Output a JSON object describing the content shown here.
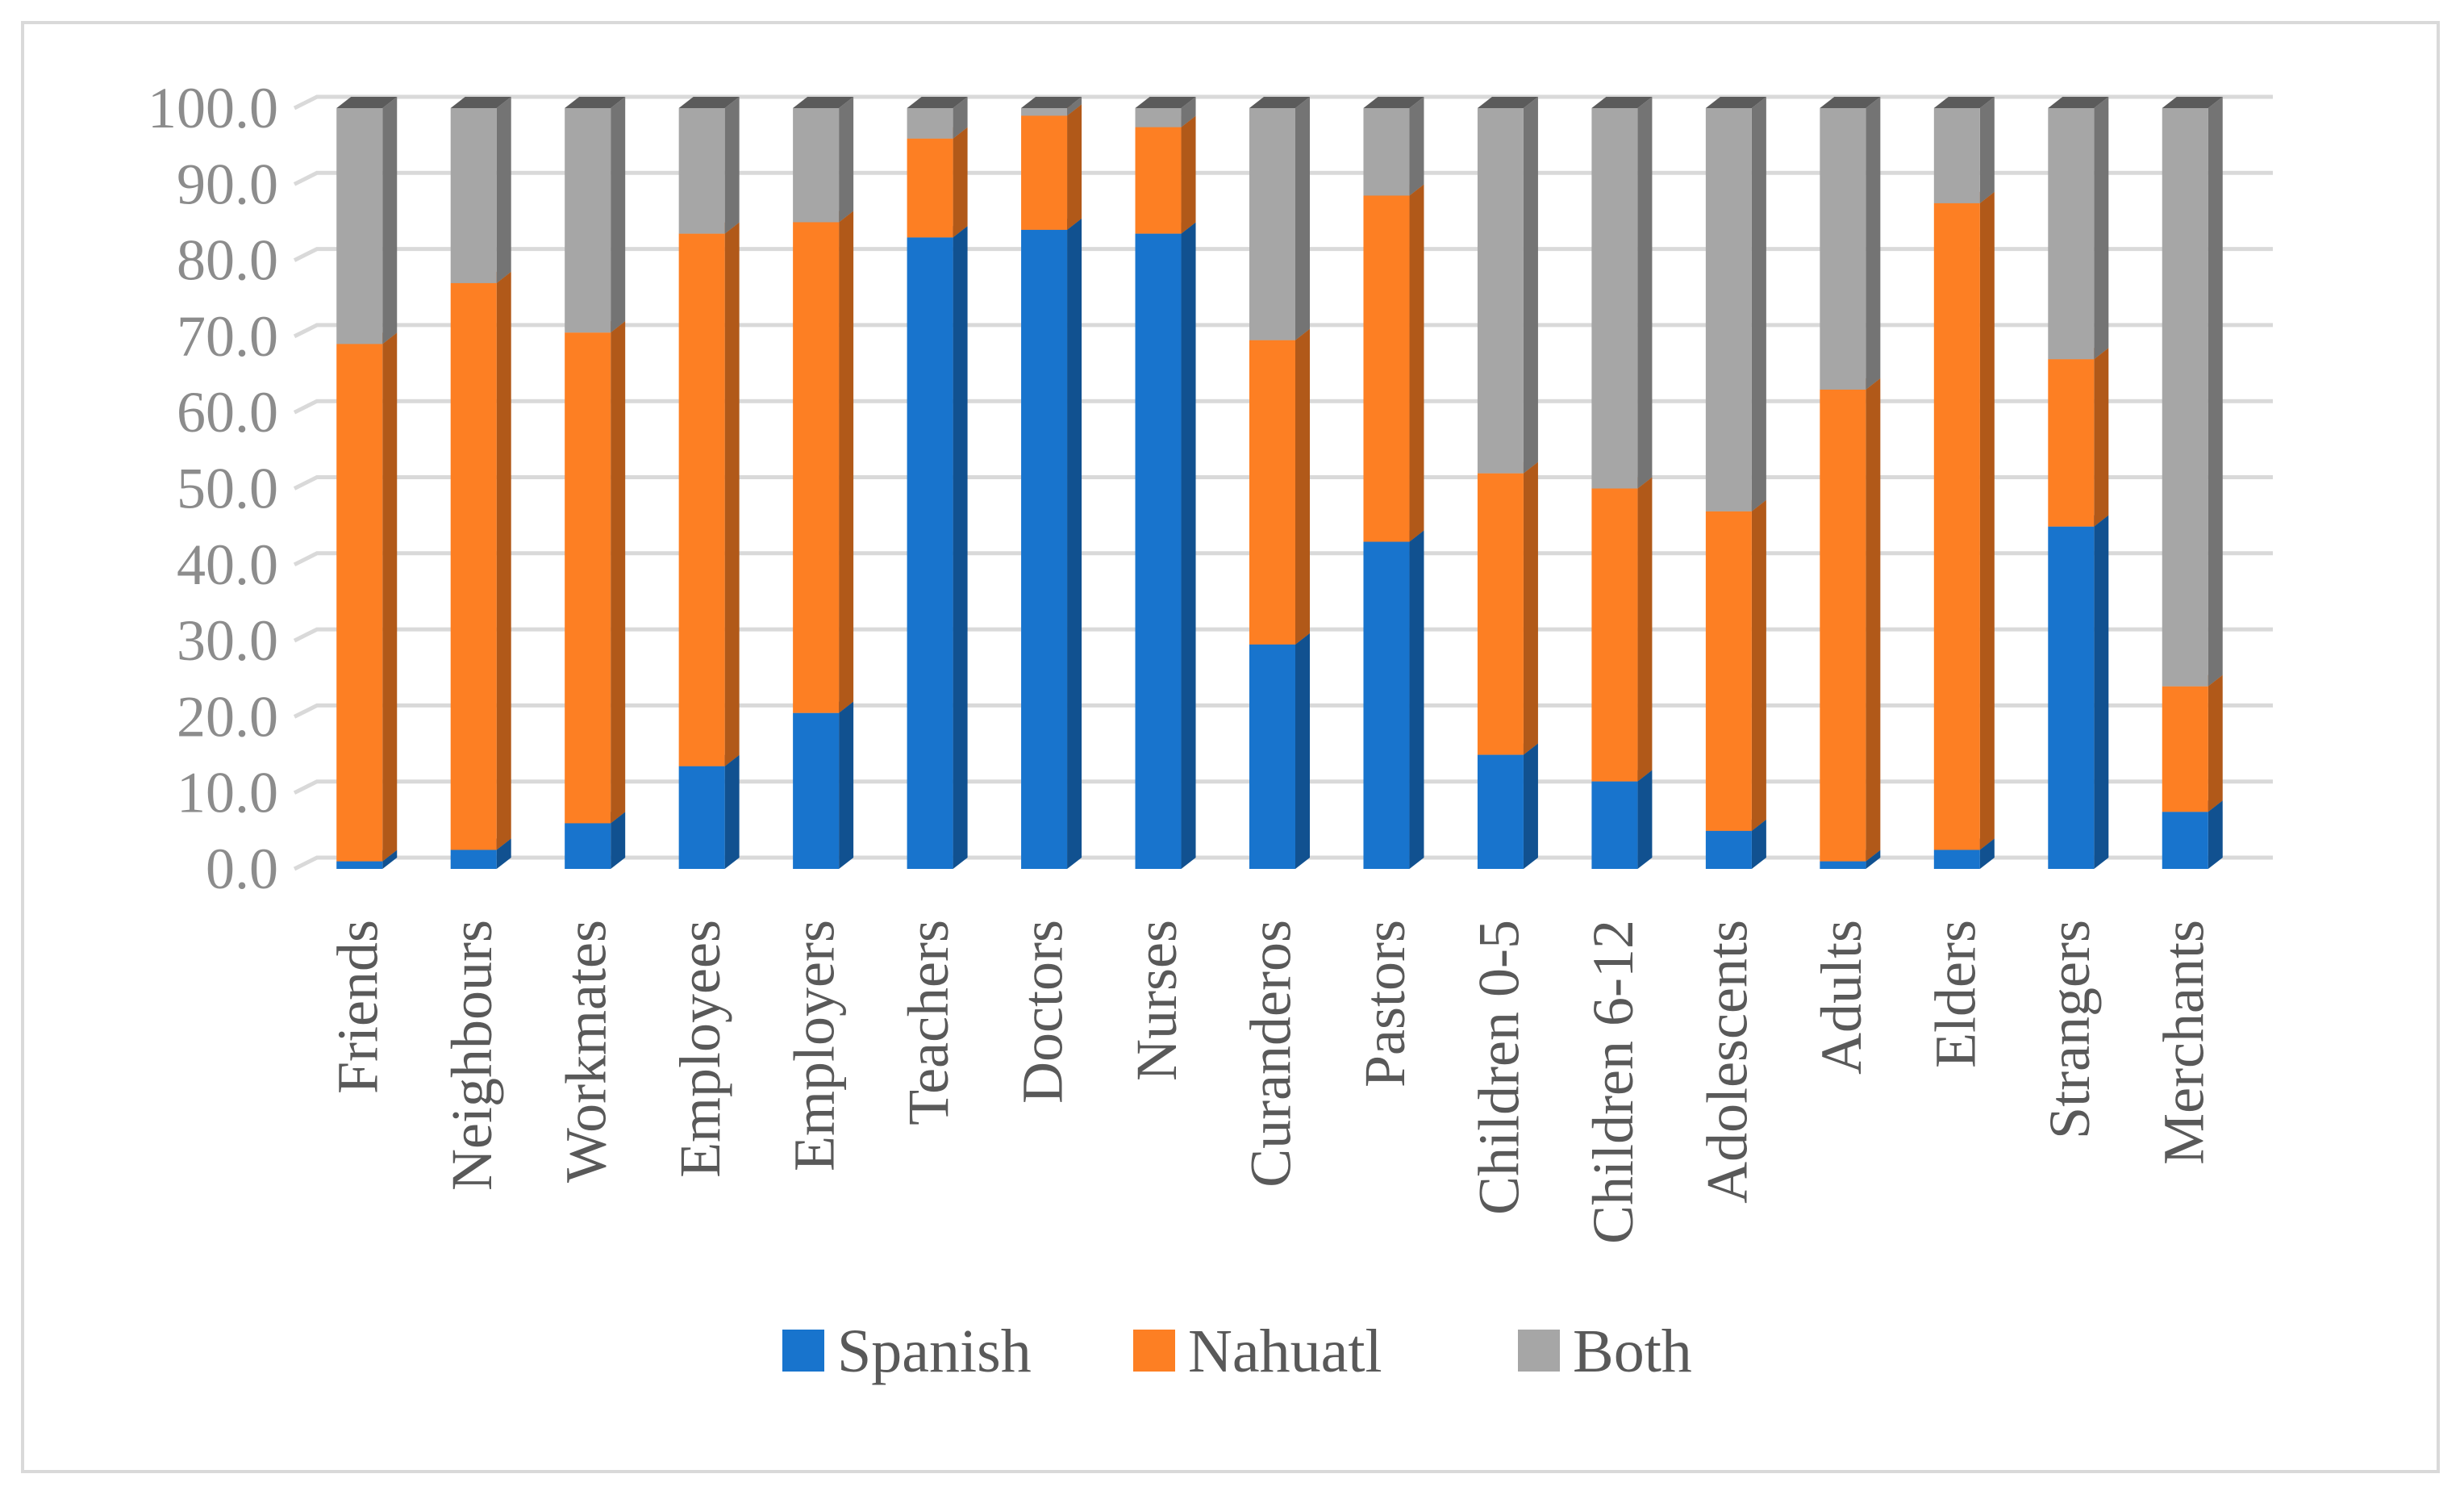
{
  "chart_data": {
    "type": "bar",
    "stacked": true,
    "three_d": true,
    "title": "",
    "xlabel": "",
    "ylabel": "",
    "ylim": [
      0,
      100
    ],
    "yticks": [
      "0.0",
      "10.0",
      "20.0",
      "30.0",
      "40.0",
      "50.0",
      "60.0",
      "70.0",
      "80.0",
      "90.0",
      "100.0"
    ],
    "grid": true,
    "legend_position": "bottom",
    "categories": [
      "Friends",
      "Neighbours",
      "Workmates",
      "Employees",
      "Employers",
      "Teachers",
      "Doctors",
      "Nurses",
      "Curanderos",
      "Pastors",
      "Children 0-5",
      "Children 6-12",
      "Adolescents",
      "Adults",
      "Elders",
      "Strangers",
      "Merchants"
    ],
    "series": [
      {
        "name": "Spanish",
        "color": "#1874cd",
        "values": [
          1.0,
          2.5,
          6.0,
          13.5,
          20.5,
          83.0,
          84.0,
          83.5,
          29.5,
          43.0,
          15.0,
          11.5,
          5.0,
          1.0,
          2.5,
          45.0,
          7.5
        ]
      },
      {
        "name": "Nahuatl",
        "color": "#fd7f23",
        "values": [
          68.0,
          74.5,
          64.5,
          70.0,
          64.5,
          13.0,
          15.0,
          14.0,
          40.0,
          45.5,
          37.0,
          38.5,
          42.0,
          62.0,
          85.0,
          22.0,
          16.5
        ]
      },
      {
        "name": "Both",
        "color": "#a6a6a6",
        "values": [
          31.0,
          23.0,
          29.5,
          16.5,
          15.0,
          4.0,
          1.0,
          2.5,
          30.5,
          11.5,
          48.0,
          50.0,
          53.0,
          37.0,
          12.5,
          33.0,
          76.0
        ]
      }
    ]
  }
}
